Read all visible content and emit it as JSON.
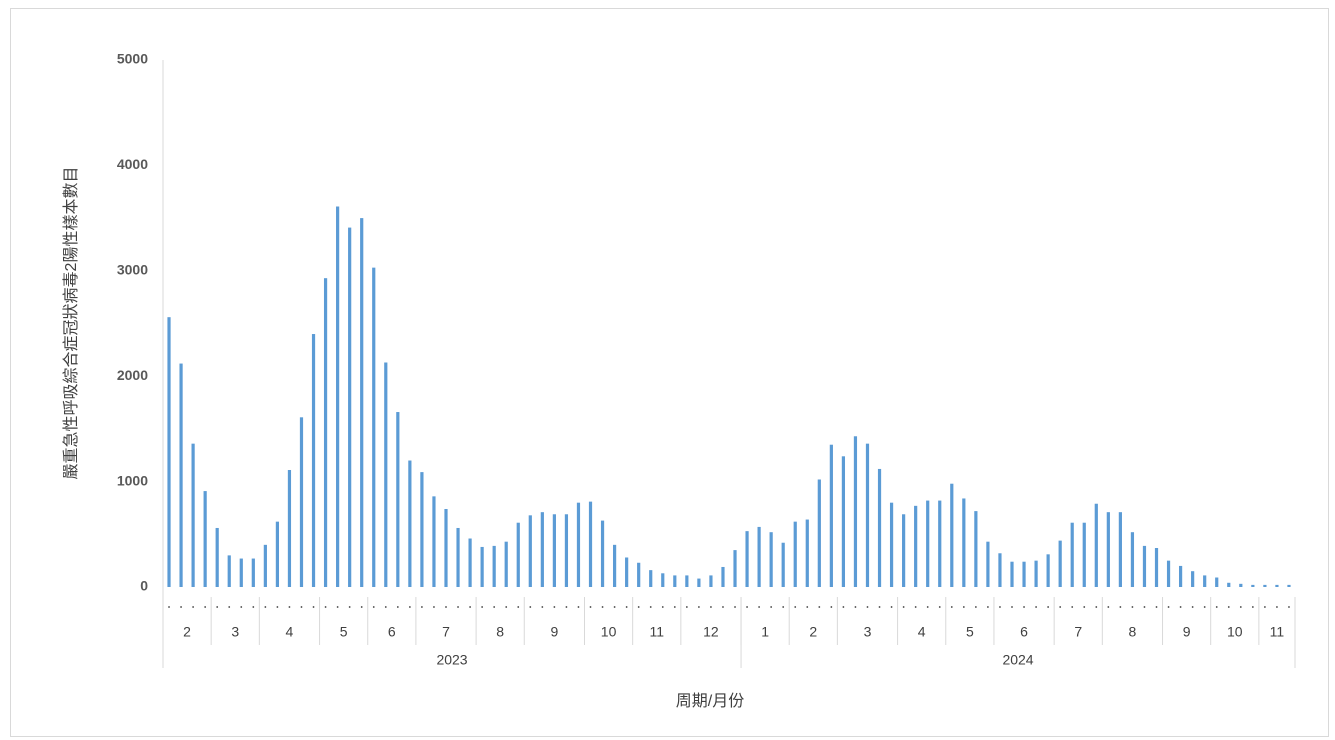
{
  "chart_data": {
    "type": "bar",
    "y_label": "嚴重急性呼吸綜合症冠狀病毒2陽性樣本數目",
    "x_label": "周期/月份",
    "color": "#5b9bd5",
    "ylim": [
      0,
      5000
    ],
    "yticks": [
      0,
      1000,
      2000,
      3000,
      4000,
      5000
    ],
    "grid": false,
    "values": [
      2560,
      2120,
      1360,
      910,
      560,
      300,
      270,
      270,
      400,
      620,
      1110,
      1610,
      2400,
      2930,
      3610,
      3410,
      3500,
      3030,
      2130,
      1660,
      1200,
      1090,
      860,
      740,
      560,
      460,
      380,
      390,
      430,
      610,
      680,
      710,
      690,
      690,
      800,
      810,
      630,
      400,
      280,
      230,
      160,
      130,
      110,
      110,
      80,
      110,
      190,
      350,
      530,
      570,
      520,
      420,
      620,
      640,
      1020,
      1350,
      1240,
      1430,
      1360,
      1120,
      800,
      690,
      770,
      820,
      820,
      980,
      840,
      720,
      430,
      320,
      240,
      240,
      250,
      310,
      440,
      610,
      610,
      790,
      710,
      710,
      520,
      390,
      370,
      250,
      200,
      150,
      110,
      90,
      40,
      30,
      20,
      20,
      20,
      20
    ],
    "month_groups": [
      {
        "label": "2",
        "weeks": 4
      },
      {
        "label": "3",
        "weeks": 4
      },
      {
        "label": "4",
        "weeks": 5
      },
      {
        "label": "5",
        "weeks": 4
      },
      {
        "label": "6",
        "weeks": 4
      },
      {
        "label": "7",
        "weeks": 5
      },
      {
        "label": "8",
        "weeks": 4
      },
      {
        "label": "9",
        "weeks": 5
      },
      {
        "label": "10",
        "weeks": 4
      },
      {
        "label": "11",
        "weeks": 4
      },
      {
        "label": "12",
        "weeks": 5
      },
      {
        "label": "1",
        "weeks": 4
      },
      {
        "label": "2",
        "weeks": 4
      },
      {
        "label": "3",
        "weeks": 5
      },
      {
        "label": "4",
        "weeks": 4
      },
      {
        "label": "5",
        "weeks": 4
      },
      {
        "label": "6",
        "weeks": 5
      },
      {
        "label": "7",
        "weeks": 4
      },
      {
        "label": "8",
        "weeks": 5
      },
      {
        "label": "9",
        "weeks": 4
      },
      {
        "label": "10",
        "weeks": 4
      },
      {
        "label": "11",
        "weeks": 3
      }
    ],
    "year_groups": [
      {
        "label": "2023",
        "weeks": 48
      },
      {
        "label": "2024",
        "weeks": 46
      }
    ]
  }
}
